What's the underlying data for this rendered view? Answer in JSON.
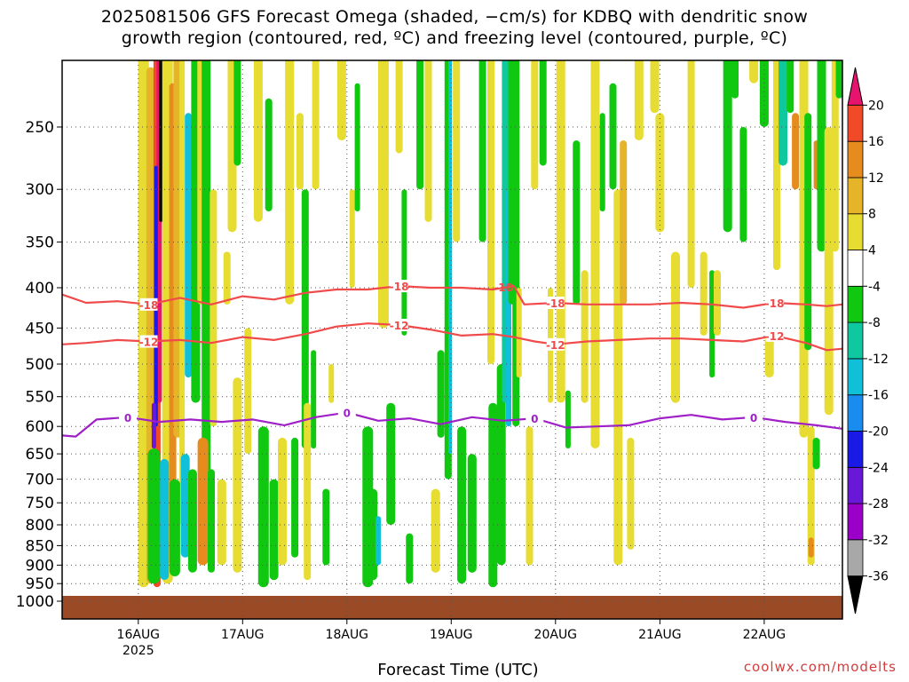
{
  "title_line1": "2025081506 GFS Forecast Omega (shaded, −cm/s) for KDBQ with dendritic snow",
  "title_line2": "growth region (contoured, red, ºC) and freezing level (contoured, purple, ºC)",
  "credit": "coolwx.com/modelts",
  "chart_data": {
    "type": "heatmap",
    "xlabel": "Forecast Time (UTC)",
    "ylabel": "",
    "x_ticks": [
      "16AUG",
      "17AUG",
      "18AUG",
      "19AUG",
      "20AUG",
      "21AUG",
      "22AUG"
    ],
    "x_year_label": "2025",
    "x_range_days": [
      15.27,
      22.75
    ],
    "y_ticks": [
      250,
      300,
      350,
      400,
      450,
      500,
      550,
      600,
      650,
      700,
      750,
      800,
      850,
      900,
      950,
      1000
    ],
    "y_range_hpa": [
      200,
      1015
    ],
    "y_scale": "log-pressure",
    "grid": true,
    "ground_level_hpa": 975,
    "colorbar": {
      "levels": [
        -36,
        -32,
        -28,
        -24,
        -20,
        -16,
        -12,
        -8,
        -4,
        4,
        8,
        12,
        16,
        20
      ],
      "labels": [
        "-36",
        "-32",
        "-28",
        "-24",
        "-20",
        "-16",
        "-12",
        "-8",
        "-4",
        "4",
        "8",
        "12",
        "16",
        "20"
      ],
      "colors": [
        "#000000",
        "#a8a8a8",
        "#9a00c8",
        "#6a18d8",
        "#1a1ae6",
        "#1a8cf0",
        "#10c0d8",
        "#10c8a0",
        "#10c810",
        "#ffffff",
        "#e6dc32",
        "#e6b428",
        "#e68c1e",
        "#f04a28",
        "#e6146e"
      ]
    },
    "contours": [
      {
        "label": "-18",
        "color": "#f04a4a",
        "x": [
          15.27,
          15.5,
          15.8,
          16.1,
          16.4,
          16.7,
          17.0,
          17.3,
          17.6,
          17.9,
          18.2,
          18.5,
          18.8,
          19.1,
          19.4,
          19.6,
          19.7,
          20.0,
          20.3,
          20.6,
          20.9,
          21.2,
          21.5,
          21.8,
          22.1,
          22.4,
          22.6,
          22.75
        ],
        "y": [
          408,
          418,
          416,
          420,
          412,
          420,
          410,
          414,
          406,
          402,
          402,
          398,
          400,
          400,
          402,
          398,
          420,
          418,
          420,
          420,
          420,
          418,
          420,
          424,
          418,
          420,
          422,
          420
        ]
      },
      {
        "label": "-12",
        "color": "#f04a4a",
        "x": [
          15.27,
          15.5,
          15.8,
          16.1,
          16.4,
          16.7,
          17.0,
          17.3,
          17.6,
          17.9,
          18.2,
          18.5,
          18.8,
          19.1,
          19.4,
          19.6,
          19.8,
          20.0,
          20.3,
          20.6,
          20.9,
          21.2,
          21.5,
          21.8,
          22.1,
          22.4,
          22.6,
          22.75
        ],
        "y": [
          472,
          470,
          466,
          468,
          466,
          470,
          462,
          466,
          458,
          448,
          444,
          446,
          452,
          460,
          458,
          462,
          468,
          472,
          468,
          466,
          464,
          464,
          466,
          468,
          460,
          470,
          480,
          478
        ]
      },
      {
        "label": "0",
        "color": "#a020c8",
        "x": [
          15.27,
          15.4,
          15.6,
          15.9,
          16.2,
          16.5,
          16.8,
          17.1,
          17.4,
          17.7,
          18.0,
          18.3,
          18.6,
          18.9,
          19.2,
          19.5,
          19.8,
          20.1,
          20.4,
          20.7,
          21.0,
          21.3,
          21.6,
          21.9,
          22.2,
          22.5,
          22.75
        ],
        "y": [
          616,
          618,
          588,
          584,
          592,
          588,
          592,
          588,
          598,
          584,
          576,
          590,
          586,
          596,
          584,
          590,
          586,
          602,
          600,
          598,
          586,
          580,
          588,
          584,
          592,
          598,
          604
        ]
      },
      {
        "label": "-18",
        "color": "#f04a4a",
        "x": [
          19.5
        ],
        "y": [
          400
        ]
      }
    ]
  }
}
